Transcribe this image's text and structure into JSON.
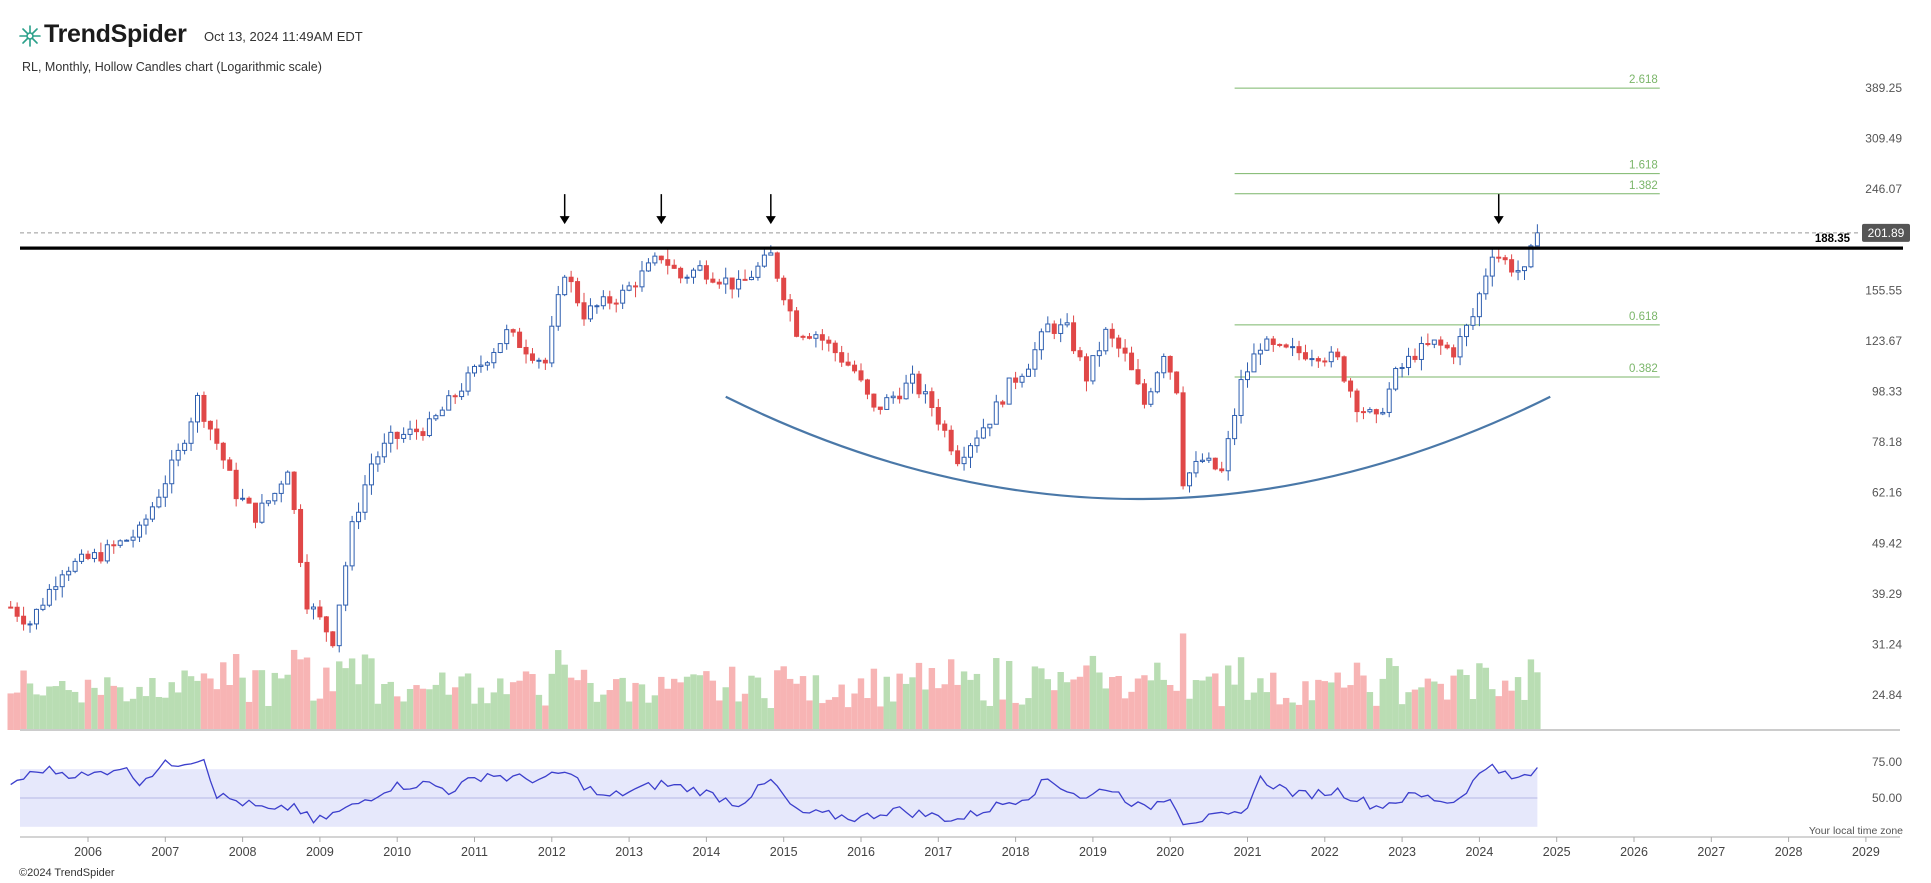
{
  "header": {
    "brand": "TrendSpider",
    "timestamp": "Oct 13, 2024 11:49AM EDT",
    "subtitle": "RL, Monthly, Hollow Candles chart (Logarithmic scale)",
    "copyright": "©2024 TrendSpider",
    "local_time_note": "Your local time zone"
  },
  "colors": {
    "up": "#2f5fb0",
    "down": "#e04747",
    "vol_up": "#b9ddb3",
    "vol_down": "#f7b4b4",
    "fib": "#7bb66a",
    "curve": "#4a78a8",
    "resistance": "#000000",
    "rsi_line": "#3c3fcc",
    "rsi_band": "#e6e8fb"
  },
  "chart_data": {
    "type": "candlestick",
    "symbol": "RL",
    "interval": "Monthly",
    "y_scale": "log",
    "y_ticks": [
      24.84,
      31.24,
      39.29,
      49.42,
      62.16,
      78.18,
      98.33,
      123.67,
      155.55,
      201.89,
      246.07,
      309.49,
      389.25
    ],
    "x_ticks": [
      "2006",
      "2007",
      "2008",
      "2009",
      "2010",
      "2011",
      "2012",
      "2013",
      "2014",
      "2015",
      "2016",
      "2017",
      "2018",
      "2019",
      "2020",
      "2021",
      "2022",
      "2023",
      "2024",
      "2025",
      "2026",
      "2027",
      "2028",
      "2029"
    ],
    "last_price": "201.89",
    "resistance": {
      "label": "188.35",
      "value": 188.35
    },
    "fib_levels": [
      {
        "label": "2.618",
        "value": 389
      },
      {
        "label": "1.618",
        "value": 264
      },
      {
        "label": "1.382",
        "value": 241
      },
      {
        "label": "0.618",
        "value": 133
      },
      {
        "label": "0.382",
        "value": 105
      }
    ],
    "arrows": [
      "2012-03",
      "2013-06",
      "2014-11",
      "2024-04"
    ],
    "close_anchors": [
      [
        "2005-01",
        37
      ],
      [
        "2005-04",
        34.5
      ],
      [
        "2005-09",
        44
      ],
      [
        "2006-03",
        47
      ],
      [
        "2006-09",
        52
      ],
      [
        "2007-03",
        74
      ],
      [
        "2007-06",
        95
      ],
      [
        "2007-09",
        78
      ],
      [
        "2007-12",
        62
      ],
      [
        "2008-03",
        56
      ],
      [
        "2008-06",
        62
      ],
      [
        "2008-08",
        70
      ],
      [
        "2008-11",
        38
      ],
      [
        "2009-03",
        32
      ],
      [
        "2009-06",
        53
      ],
      [
        "2009-09",
        71
      ],
      [
        "2009-12",
        79
      ],
      [
        "2010-06",
        84
      ],
      [
        "2010-12",
        104
      ],
      [
        "2011-06",
        128
      ],
      [
        "2011-12",
        112
      ],
      [
        "2012-03",
        170
      ],
      [
        "2012-06",
        140
      ],
      [
        "2012-12",
        153
      ],
      [
        "2013-06",
        182
      ],
      [
        "2013-09",
        165
      ],
      [
        "2013-12",
        172
      ],
      [
        "2014-06",
        158
      ],
      [
        "2014-11",
        182
      ],
      [
        "2015-03",
        130
      ],
      [
        "2015-06",
        128
      ],
      [
        "2015-12",
        108
      ],
      [
        "2016-03",
        90
      ],
      [
        "2016-09",
        103
      ],
      [
        "2016-12",
        92
      ],
      [
        "2017-04",
        73
      ],
      [
        "2017-09",
        87
      ],
      [
        "2017-12",
        101
      ],
      [
        "2018-03",
        112
      ],
      [
        "2018-06",
        132
      ],
      [
        "2018-09",
        130
      ],
      [
        "2018-12",
        105
      ],
      [
        "2019-03",
        128
      ],
      [
        "2019-06",
        115
      ],
      [
        "2019-09",
        93
      ],
      [
        "2019-12",
        118
      ],
      [
        "2020-02",
        100
      ],
      [
        "2020-03",
        66
      ],
      [
        "2020-06",
        72
      ],
      [
        "2020-09",
        68
      ],
      [
        "2020-12",
        102
      ],
      [
        "2021-03",
        122
      ],
      [
        "2021-06",
        118
      ],
      [
        "2021-12",
        117
      ],
      [
        "2022-03",
        113
      ],
      [
        "2022-06",
        93
      ],
      [
        "2022-09",
        86
      ],
      [
        "2022-12",
        106
      ],
      [
        "2023-03",
        117
      ],
      [
        "2023-06",
        122
      ],
      [
        "2023-09",
        118
      ],
      [
        "2023-12",
        138
      ],
      [
        "2024-03",
        186
      ],
      [
        "2024-06",
        173
      ],
      [
        "2024-08",
        168
      ],
      [
        "2024-10",
        201.89
      ]
    ],
    "rsi": {
      "levels": [
        75.0,
        50.0
      ],
      "band": [
        70,
        30
      ],
      "anchors": [
        [
          "2005-01",
          60
        ],
        [
          "2005-06",
          70
        ],
        [
          "2006-01",
          65
        ],
        [
          "2006-06",
          72
        ],
        [
          "2006-09",
          62
        ],
        [
          "2007-01",
          73
        ],
        [
          "2007-07",
          78
        ],
        [
          "2007-09",
          52
        ],
        [
          "2008-06",
          40
        ],
        [
          "2008-09",
          45
        ],
        [
          "2008-12",
          33
        ],
        [
          "2009-06",
          44
        ],
        [
          "2009-12",
          58
        ],
        [
          "2010-06",
          60
        ],
        [
          "2010-09",
          55
        ],
        [
          "2011-03",
          67
        ],
        [
          "2011-06",
          64
        ],
        [
          "2011-12",
          63
        ],
        [
          "2012-03",
          68
        ],
        [
          "2012-09",
          50
        ],
        [
          "2013-06",
          60
        ],
        [
          "2013-12",
          55
        ],
        [
          "2014-06",
          46
        ],
        [
          "2014-11",
          62
        ],
        [
          "2015-03",
          40
        ],
        [
          "2016-01",
          36
        ],
        [
          "2016-06",
          42
        ],
        [
          "2017-04",
          35
        ],
        [
          "2017-09",
          43
        ],
        [
          "2018-03",
          52
        ],
        [
          "2018-06",
          63
        ],
        [
          "2018-12",
          49
        ],
        [
          "2019-03",
          58
        ],
        [
          "2019-09",
          42
        ],
        [
          "2020-01",
          52
        ],
        [
          "2020-03",
          34
        ],
        [
          "2020-12",
          38
        ],
        [
          "2021-03",
          63
        ],
        [
          "2021-09",
          52
        ],
        [
          "2022-03",
          55
        ],
        [
          "2022-09",
          44
        ],
        [
          "2023-03",
          52
        ],
        [
          "2023-09",
          47
        ],
        [
          "2024-03",
          75
        ],
        [
          "2024-06",
          62
        ],
        [
          "2024-10",
          68
        ]
      ]
    }
  }
}
